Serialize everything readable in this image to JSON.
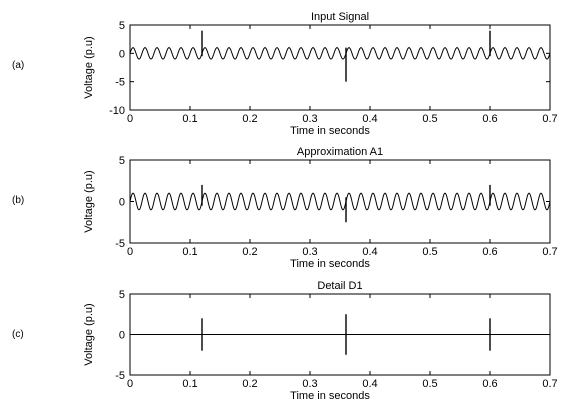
{
  "chart_data": [
    {
      "type": "line",
      "panel_tag": "(a)",
      "title": "Input Signal",
      "xlabel": "Time in seconds",
      "ylabel": "Voltage (p.u)",
      "xlim": [
        0,
        0.7
      ],
      "ylim": [
        -10,
        5
      ],
      "xticks": [
        "0",
        "0.1",
        "0.2",
        "0.3",
        "0.4",
        "0.5",
        "0.6",
        "0.7"
      ],
      "yticks": [
        "-10",
        "-5",
        "0",
        "5"
      ],
      "grid": false,
      "series": [
        {
          "waveform": "sinusoid",
          "amplitude": 1,
          "cycles": 35,
          "color": "#000000",
          "transients": [
            {
              "x": 0.12,
              "y_min": -0.5,
              "y_max": 4
            },
            {
              "x": 0.36,
              "y_min": -5,
              "y_max": 1
            },
            {
              "x": 0.6,
              "y_min": -0.5,
              "y_max": 4
            }
          ]
        }
      ]
    },
    {
      "type": "line",
      "panel_tag": "(b)",
      "title": "Approximation A1",
      "xlabel": "Time in seconds",
      "ylabel": "Voltage (p.u)",
      "xlim": [
        0,
        0.7
      ],
      "ylim": [
        -5,
        5
      ],
      "xticks": [
        "0",
        "0.1",
        "0.2",
        "0.3",
        "0.4",
        "0.5",
        "0.6",
        "0.7"
      ],
      "yticks": [
        "-5",
        "0",
        "5"
      ],
      "grid": false,
      "series": [
        {
          "waveform": "sinusoid",
          "amplitude": 1,
          "cycles": 35,
          "color": "#000000",
          "transients": [
            {
              "x": 0.12,
              "y_min": -0.5,
              "y_max": 2
            },
            {
              "x": 0.36,
              "y_min": -2.5,
              "y_max": 0.5
            },
            {
              "x": 0.6,
              "y_min": -0.5,
              "y_max": 2
            }
          ]
        }
      ]
    },
    {
      "type": "line",
      "panel_tag": "(c)",
      "title": "Detail D1",
      "xlabel": "Time in seconds",
      "ylabel": "Voltage (p.u)",
      "xlim": [
        0,
        0.7
      ],
      "ylim": [
        -5,
        5
      ],
      "xticks": [
        "0",
        "0.1",
        "0.2",
        "0.3",
        "0.4",
        "0.5",
        "0.6",
        "0.7"
      ],
      "yticks": [
        "-5",
        "0",
        "5"
      ],
      "grid": false,
      "series": [
        {
          "waveform": "flat",
          "amplitude": 0,
          "cycles": 0,
          "color": "#000000",
          "transients": [
            {
              "x": 0.12,
              "y_min": -2,
              "y_max": 2
            },
            {
              "x": 0.36,
              "y_min": -2.5,
              "y_max": 2.5
            },
            {
              "x": 0.6,
              "y_min": -2,
              "y_max": 2
            }
          ]
        }
      ]
    }
  ]
}
